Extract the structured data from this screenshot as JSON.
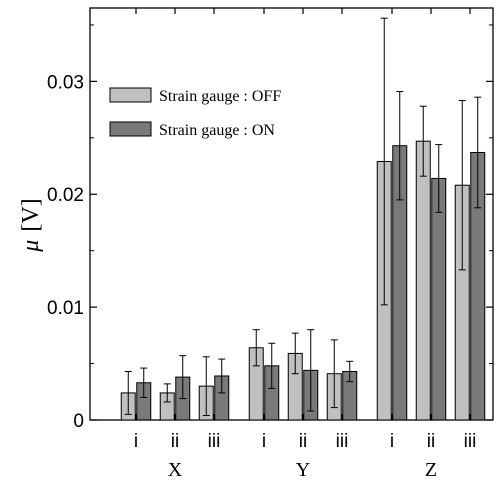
{
  "chart_data": {
    "type": "bar",
    "ylabel_symbol": "μ",
    "ylabel_unit": "[V]",
    "ylim": [
      0,
      0.0365
    ],
    "yticks": [
      0,
      0.01,
      0.02,
      0.03
    ],
    "ytick_labels": [
      "0",
      "0.01",
      "0.02",
      "0.03"
    ],
    "categories": [
      "i",
      "ii",
      "iii",
      "i",
      "ii",
      "iii",
      "i",
      "ii",
      "iii"
    ],
    "groups": [
      {
        "label": "X",
        "start": 0,
        "end": 2
      },
      {
        "label": "Y",
        "start": 3,
        "end": 5
      },
      {
        "label": "Z",
        "start": 6,
        "end": 8
      }
    ],
    "legend_position": "top-left",
    "grid": false,
    "series": [
      {
        "name": "Strain gauge : OFF",
        "color": "#c0c0c0",
        "values": [
          0.0024,
          0.0024,
          0.003,
          0.0064,
          0.0059,
          0.0041,
          0.0229,
          0.0247,
          0.0208
        ],
        "errors": [
          0.0019,
          0.0008,
          0.0026,
          0.0016,
          0.0018,
          0.003,
          0.0127,
          0.0031,
          0.0075
        ]
      },
      {
        "name": "Strain gauge : ON",
        "color": "#7a7a7a",
        "values": [
          0.0033,
          0.0038,
          0.0039,
          0.0048,
          0.0044,
          0.0043,
          0.0243,
          0.0214,
          0.0237
        ],
        "errors": [
          0.0013,
          0.0019,
          0.0015,
          0.002,
          0.0036,
          0.0009,
          0.0048,
          0.003,
          0.0049
        ]
      }
    ]
  }
}
